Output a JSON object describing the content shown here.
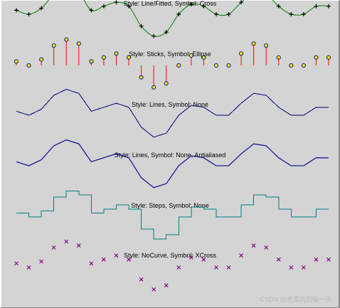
{
  "watermark": "CSDN @老菜鸟的每一天",
  "chart_data": {
    "type": "line",
    "x": [
      0,
      1,
      2,
      3,
      4,
      5,
      6,
      7,
      8,
      9,
      10,
      11,
      12,
      13,
      14,
      15,
      16,
      17,
      18,
      19,
      20,
      21,
      22,
      23,
      24,
      25
    ],
    "shared_y": [
      2,
      0,
      3,
      10,
      13,
      11,
      2,
      4,
      6,
      4,
      -6,
      -11,
      -9,
      0,
      5,
      4,
      0,
      0,
      6,
      11,
      10,
      4,
      0,
      0,
      4,
      4
    ],
    "panels": [
      {
        "title": "Style: Line/Fitted, Symbol: Cross",
        "style": "fitted",
        "symbol": "cross",
        "line_color": "#008000",
        "symbol_color": "#000000"
      },
      {
        "title": "Style: Sticks, Symbol: Ellipse",
        "style": "sticks",
        "symbol": "ellipse",
        "line_color": "#ff0000",
        "symbol_color": "#000080"
      },
      {
        "title": "Style: Lines, Symbol: None",
        "style": "lines",
        "symbol": "none",
        "line_color": "#000080"
      },
      {
        "title": "Style: Lines, Symbol: None, Antialiased",
        "style": "lines",
        "symbol": "none",
        "line_color": "#1a1a9c"
      },
      {
        "title": "Style: Steps, Symbol: None",
        "style": "steps",
        "symbol": "none",
        "line_color": "#008080"
      },
      {
        "title": "Style: NoCurve, Symbol: XCross",
        "style": "nocurve",
        "symbol": "xcross",
        "symbol_color": "#800080"
      }
    ]
  }
}
